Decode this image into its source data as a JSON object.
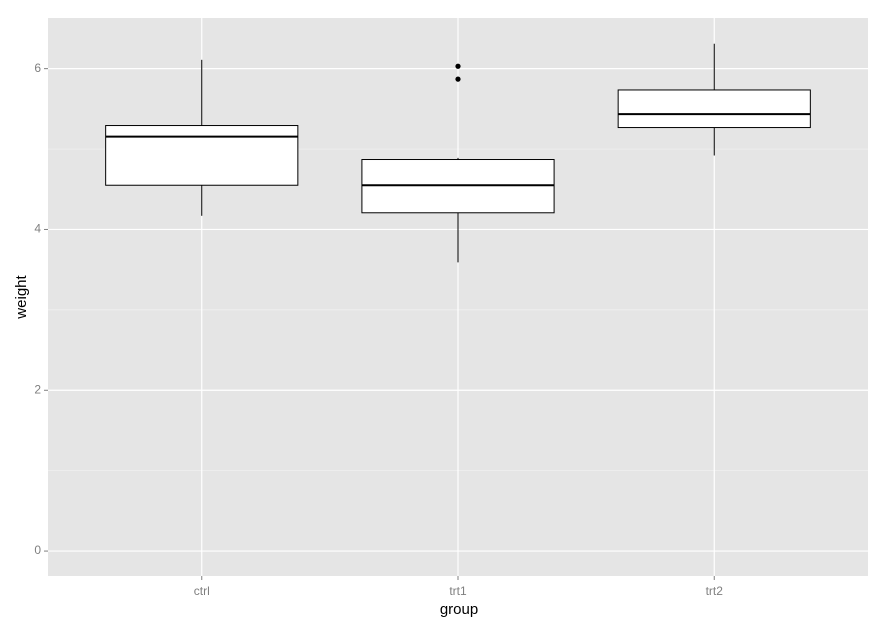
{
  "chart_data": {
    "type": "boxplot",
    "x_label": "group",
    "y_label": "weight",
    "categories": [
      "ctrl",
      "trt1",
      "trt2"
    ],
    "boxes": [
      {
        "min": 4.17,
        "q1": 4.55,
        "median": 5.155,
        "q3": 5.2925,
        "max": 6.11,
        "outliers": []
      },
      {
        "min": 3.59,
        "q1": 4.2075,
        "median": 4.55,
        "q3": 4.87,
        "max": 4.89,
        "outliers": [
          5.87,
          6.03
        ]
      },
      {
        "min": 4.92,
        "q1": 5.2675,
        "median": 5.435,
        "q3": 5.735,
        "max": 6.31,
        "outliers": []
      }
    ],
    "ylim": [
      -0.31,
      6.63
    ],
    "yticks": [
      0,
      2,
      4,
      6
    ],
    "minor_yticks": [
      1,
      3,
      5
    ],
    "grid": true,
    "panel_color": "#e5e5e5",
    "box_fill": "#ffffff",
    "line_color": "#000000"
  }
}
